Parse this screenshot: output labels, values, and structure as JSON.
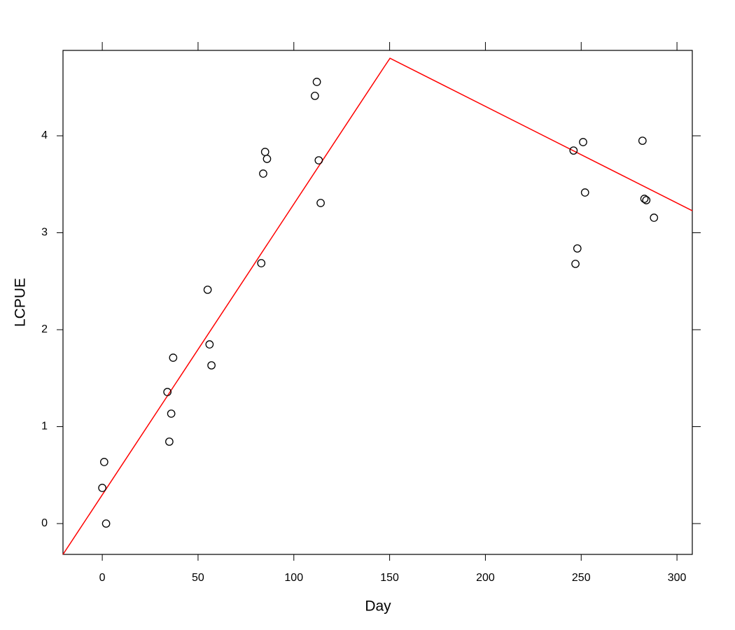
{
  "chart_data": {
    "type": "scatter",
    "x_label": "Day",
    "y_label": "LCPUE",
    "xlim": [
      -20.5,
      308
    ],
    "ylim": [
      -0.318,
      4.881
    ],
    "xticks": [
      0,
      50,
      100,
      150,
      200,
      250,
      300
    ],
    "yticks": [
      0,
      1,
      2,
      3,
      4
    ],
    "points": {
      "color": "#000000",
      "x": [
        0,
        1,
        2,
        34,
        35,
        36,
        37,
        55,
        56,
        57,
        83,
        84,
        85,
        86,
        111,
        112,
        113,
        114,
        246,
        247,
        248,
        251,
        252,
        282,
        283,
        284,
        288
      ],
      "values": [
        0.368,
        0.635,
        0,
        1.357,
        0.845,
        1.134,
        1.711,
        2.412,
        1.848,
        1.632,
        2.686,
        3.61,
        3.834,
        3.762,
        4.412,
        4.556,
        3.747,
        3.307,
        3.848,
        2.679,
        2.838,
        3.935,
        3.415,
        3.949,
        3.35,
        3.336,
        3.155
      ]
    },
    "line": {
      "color": "#ff0000",
      "x": [
        -20.5,
        147.3,
        150.2,
        308
      ],
      "values": [
        -0.318,
        4.715,
        4.8,
        3.227
      ]
    }
  }
}
